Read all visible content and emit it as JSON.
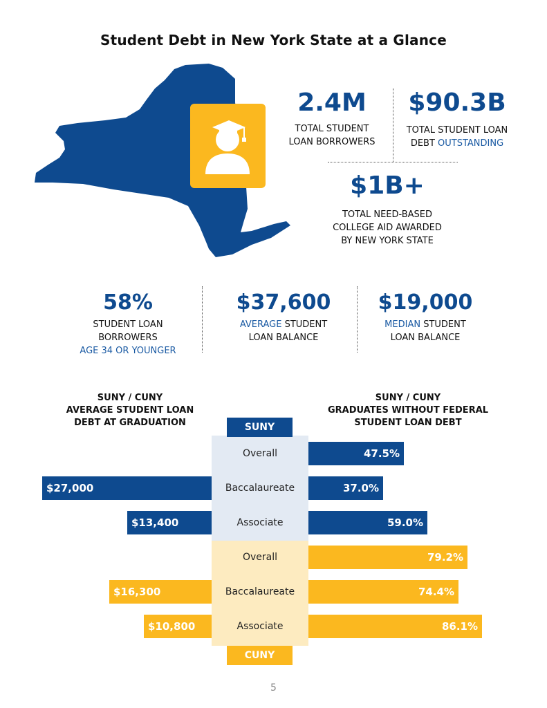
{
  "title": "Student Debt in New York State at a Glance",
  "colors": {
    "suny": "#0e4a8f",
    "cuny": "#fbb81f",
    "suny_panel": "#e3eaf3",
    "cuny_panel": "#fdebc0"
  },
  "icons": {
    "map": "new-york-state-map",
    "graduate": "graduate-icon"
  },
  "stats_top": {
    "borrowers": {
      "value": "2.4M",
      "label_line1": "TOTAL STUDENT",
      "label_line2": "LOAN BORROWERS"
    },
    "debt": {
      "value": "$90.3B",
      "label_line1": "TOTAL STUDENT LOAN",
      "label_line2_pre": "DEBT ",
      "label_line2_hl": "OUTSTANDING"
    },
    "aid": {
      "value": "$1B+",
      "label_line1": "TOTAL NEED-BASED",
      "label_line2": "COLLEGE AID AWARDED",
      "label_line3": "BY NEW YORK STATE"
    }
  },
  "stats_mid": {
    "young": {
      "value": "58%",
      "line1": "STUDENT LOAN",
      "line2": "BORROWERS",
      "line3_hl": "AGE 34 OR YOUNGER"
    },
    "average": {
      "value": "$37,600",
      "line1_hl": "AVERAGE",
      "line1_rest": " STUDENT",
      "line2": "LOAN BALANCE"
    },
    "median": {
      "value": "$19,000",
      "line1_hl": "MEDIAN",
      "line1_rest": " STUDENT",
      "line2": "LOAN BALANCE"
    }
  },
  "chart_data": {
    "type": "bar",
    "left_title": [
      "SUNY / CUNY",
      "AVERAGE STUDENT LOAN",
      "DEBT AT GRADUATION"
    ],
    "right_title": [
      "SUNY / CUNY",
      "GRADUATES WITHOUT FEDERAL",
      "STUDENT LOAN DEBT"
    ],
    "groups": [
      "SUNY",
      "CUNY"
    ],
    "categories": [
      "Overall",
      "Baccalaureate",
      "Associate"
    ],
    "series": [
      {
        "name": "SUNY",
        "debt": [
          null,
          27000,
          13400
        ],
        "debt_labels": [
          "",
          "$27,000",
          "$13,400"
        ],
        "no_debt_pct": [
          47.5,
          37.0,
          59.0
        ],
        "no_debt_labels": [
          "47.5%",
          "37.0%",
          "59.0%"
        ]
      },
      {
        "name": "CUNY",
        "debt": [
          null,
          16300,
          10800
        ],
        "debt_labels": [
          "",
          "$16,300",
          "$10,800"
        ],
        "no_debt_pct": [
          79.2,
          74.4,
          86.1
        ],
        "no_debt_labels": [
          "79.2%",
          "74.4%",
          "86.1%"
        ]
      }
    ]
  },
  "page_number": "5"
}
